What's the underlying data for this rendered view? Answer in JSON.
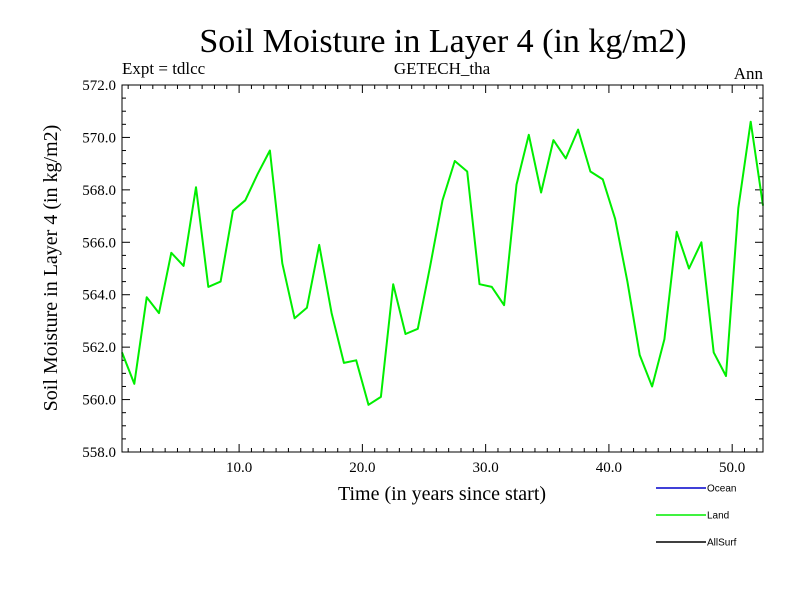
{
  "chart_data": {
    "type": "line",
    "title": "Soil Moisture in Layer 4 (in kg/m2)",
    "subtitle_left": "Expt = tdlcc",
    "subtitle_center": "GETECH_tha",
    "subtitle_right": "Ann",
    "xlabel": "Time (in years since start)",
    "ylabel": "Soil Moisture in Layer 4 (in kg/m2)",
    "xlim": [
      0.5,
      52.5
    ],
    "ylim": [
      558.0,
      572.0
    ],
    "xticks": [
      10,
      20,
      30,
      40,
      50
    ],
    "xtick_labels": [
      "10.0",
      "20.0",
      "30.0",
      "40.0",
      "50.0"
    ],
    "yticks": [
      558,
      560,
      562,
      564,
      566,
      568,
      570,
      572
    ],
    "ytick_labels": [
      "558.0",
      "560.0",
      "562.0",
      "564.0",
      "566.0",
      "568.0",
      "570.0",
      "572.0"
    ],
    "legend": [
      {
        "name": "Ocean",
        "color": "#0000cc"
      },
      {
        "name": "Land",
        "color": "#00ee00"
      },
      {
        "name": "AllSurf",
        "color": "#000000"
      }
    ],
    "series": [
      {
        "name": "Land",
        "color": "#00ee00",
        "x": [
          0.5,
          1.5,
          2.5,
          3.5,
          4.5,
          5.5,
          6.5,
          7.5,
          8.5,
          9.5,
          10.5,
          11.5,
          12.5,
          13.5,
          14.5,
          15.5,
          16.5,
          17.5,
          18.5,
          19.5,
          20.5,
          21.5,
          22.5,
          23.5,
          24.5,
          25.5,
          26.5,
          27.5,
          28.5,
          29.5,
          30.5,
          31.5,
          32.5,
          33.5,
          34.5,
          35.5,
          36.5,
          37.5,
          38.5,
          39.5,
          40.5,
          41.5,
          42.5,
          43.5,
          44.5,
          45.5,
          46.5,
          47.5,
          48.5,
          49.5,
          50.5,
          51.5,
          52.5
        ],
        "values": [
          561.8,
          560.6,
          563.9,
          563.3,
          565.6,
          565.1,
          568.1,
          564.3,
          564.5,
          567.2,
          567.6,
          568.6,
          569.5,
          565.2,
          563.1,
          563.5,
          565.9,
          563.3,
          561.4,
          561.5,
          559.8,
          560.1,
          564.4,
          562.5,
          562.7,
          565.1,
          567.6,
          569.1,
          568.7,
          564.4,
          564.3,
          563.6,
          568.2,
          570.1,
          567.9,
          569.9,
          569.2,
          570.3,
          568.7,
          568.4,
          566.9,
          564.5,
          561.7,
          560.5,
          562.3,
          566.4,
          565.0,
          566.0,
          561.8,
          560.9,
          567.3,
          570.6,
          567.4
        ]
      }
    ]
  }
}
